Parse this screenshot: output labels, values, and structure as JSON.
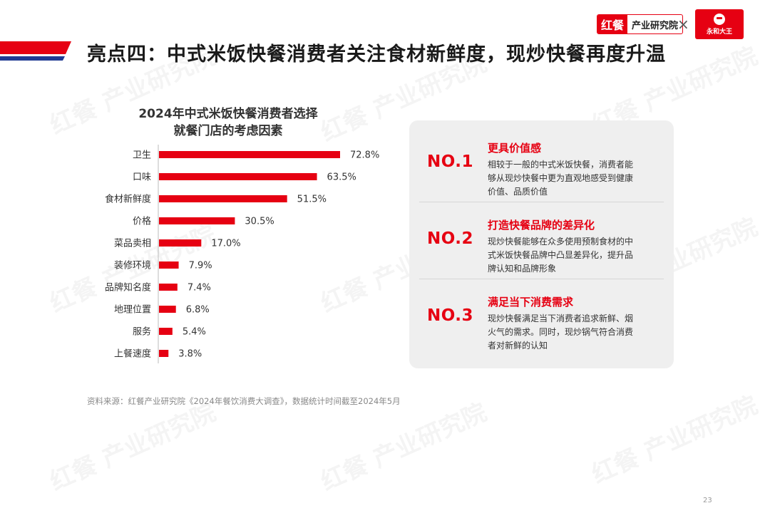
{
  "page": {
    "title": "亮点四：中式米饭快餐消费者关注食材新鲜度，现炒快餐再度升温",
    "source": "资料来源：红餐产业研究院《2024年餐饮消费大调查》，数据统计时间截至2024年5月",
    "page_number": "23"
  },
  "branding": {
    "logo_mark": "红餐",
    "logo_text": "产业研究院",
    "partner_name": "永和大王",
    "watermark_mark": "红餐",
    "watermark_text": "产业研究院",
    "accent_color": "#e60012"
  },
  "chart_data": {
    "type": "bar",
    "orientation": "horizontal",
    "title_line1": "2024年中式米饭快餐消费者选择",
    "title_line2": "就餐门店的考虑因素",
    "categories": [
      "卫生",
      "口味",
      "食材新鲜度",
      "价格",
      "菜品卖相",
      "装修环境",
      "品牌知名度",
      "地理位置",
      "服务",
      "上餐速度"
    ],
    "values": [
      72.8,
      63.5,
      51.5,
      30.5,
      17.0,
      7.9,
      7.4,
      6.8,
      5.4,
      3.8
    ],
    "value_labels": [
      "72.8%",
      "63.5%",
      "51.5%",
      "30.5%",
      "17.0%",
      "7.9%",
      "7.4%",
      "6.8%",
      "5.4%",
      "3.8%"
    ],
    "unit": "%",
    "bar_color": "#e60012",
    "xlim": [
      0,
      100
    ]
  },
  "highlights": [
    {
      "no": "NO.1",
      "title": "更具价值感",
      "lines": [
        "相较于一般的中式米饭快餐，消费者能",
        "够从现炒快餐中更为直观地感受到健康",
        "价值、品质价值"
      ]
    },
    {
      "no": "NO.2",
      "title": "打造快餐品牌的差异化",
      "lines": [
        "现炒快餐能够在众多使用预制食材的中",
        "式米饭快餐品牌中凸显差异化，提升品",
        "牌认知和品牌形象"
      ]
    },
    {
      "no": "NO.3",
      "title": "满足当下消费需求",
      "lines": [
        "现炒快餐满足当下消费者追求新鲜、烟",
        "火气的需求。同时，现炒锅气符合消费",
        "者对新鲜的认知"
      ]
    }
  ]
}
